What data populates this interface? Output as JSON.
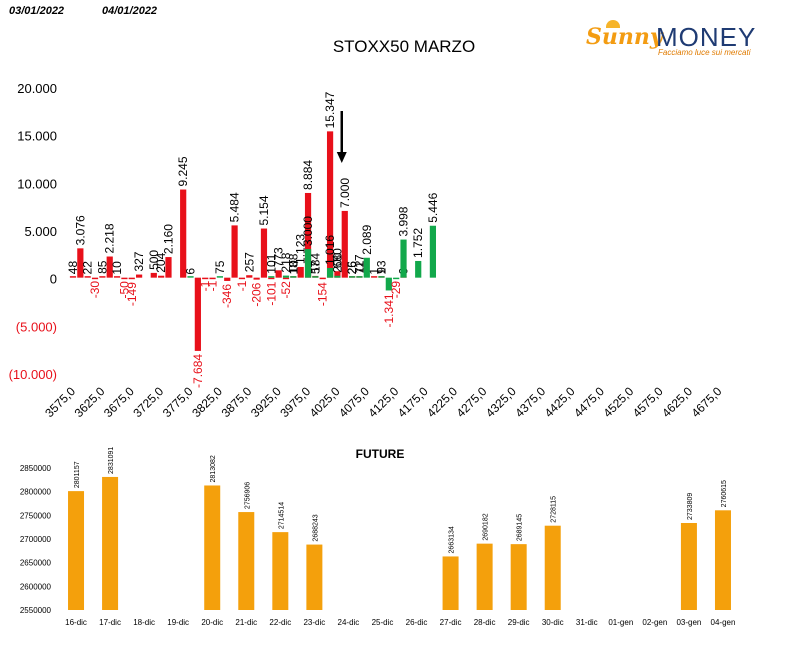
{
  "header": {
    "date_left": "03/01/2022",
    "date_right": "04/01/2022"
  },
  "logo": {
    "part1": "Sunny",
    "part2": "MONEY",
    "tagline": "Facciamo luce sui mercati"
  },
  "colors": {
    "red": "#e8101a",
    "green": "#12a84b",
    "orange": "#f4a00c",
    "negative_text": "#e8101a"
  },
  "chart_data": [
    {
      "type": "bar",
      "title": "STOXX50 MARZO",
      "ylim": [
        -10000,
        20000
      ],
      "yticks": [
        20000,
        15000,
        10000,
        5000,
        0,
        -5000,
        -10000
      ],
      "ytick_labels": [
        "20.000",
        "15.000",
        "10.000",
        "5.000",
        "0",
        "(5.000)",
        "(10.000)"
      ],
      "grid": false,
      "legend": "none",
      "categories": [
        "3575,0",
        "3625,0",
        "3675,0",
        "3725,0",
        "3775,0",
        "3825,0",
        "3875,0",
        "3925,0",
        "3975,0",
        "4025,0",
        "4075,0",
        "4125,0",
        "4175,0",
        "4225,0",
        "4275,0",
        "4325,0",
        "4375,0",
        "4425,0",
        "4475,0",
        "4525,0",
        "4575,0",
        "4625,0",
        "4675,0"
      ],
      "series": [
        {
          "values": [
            [
              0,
              48,
              "48"
            ],
            [
              0.5,
              3076,
              "3.076"
            ],
            [
              1,
              22,
              "22"
            ],
            [
              1.5,
              -30,
              "-30"
            ],
            [
              2,
              85,
              "85"
            ],
            [
              2.5,
              2218,
              "2.218"
            ],
            [
              3,
              10,
              "10"
            ],
            [
              3.5,
              -50,
              "-50"
            ],
            [
              4,
              -149,
              "-149"
            ],
            [
              4.5,
              327,
              "327"
            ],
            [
              5.5,
              500,
              "500"
            ],
            [
              6,
              204,
              "204"
            ],
            [
              6.5,
              2160,
              "2.160"
            ],
            [
              7.5,
              9245,
              "9.245"
            ],
            [
              8.5,
              -7684,
              "-7.684"
            ],
            [
              9,
              -1,
              "-1"
            ],
            [
              9.5,
              -1,
              "-1"
            ],
            [
              10.5,
              -346,
              "-346"
            ],
            [
              11,
              5484,
              "5.484"
            ],
            [
              11.5,
              -1,
              "-1"
            ],
            [
              12,
              257,
              "257"
            ],
            [
              12.5,
              -206,
              "-206"
            ],
            [
              13,
              5154,
              "5.154"
            ],
            [
              13.5,
              -101,
              "-101"
            ],
            [
              14,
              773,
              "773"
            ],
            [
              14.5,
              -52,
              "-52"
            ],
            [
              15,
              18,
              "18"
            ],
            [
              15.5,
              1123,
              "1.123"
            ],
            [
              16,
              8884,
              "8.884"
            ],
            [
              16.5,
              184,
              "184"
            ],
            [
              17,
              -154,
              "-154"
            ],
            [
              17.5,
              15347,
              "15.347"
            ],
            [
              18,
              680,
              "680"
            ],
            [
              18.5,
              7000,
              "7.000"
            ],
            [
              19,
              25,
              "25"
            ],
            [
              19.5,
              72,
              "72"
            ],
            [
              20.5,
              1,
              "1"
            ],
            [
              21,
              93,
              "93"
            ],
            [
              22.5,
              6,
              "6"
            ]
          ]
        },
        {
          "values": [
            [
              8,
              6,
              "6"
            ],
            [
              10,
              75,
              "75"
            ],
            [
              13.5,
              101,
              "101"
            ],
            [
              14.5,
              218,
              "218"
            ],
            [
              15,
              108,
              "108"
            ],
            [
              16,
              3000,
              "3.000"
            ],
            [
              16.5,
              57,
              "57"
            ],
            [
              17.5,
              1016,
              "1.016"
            ],
            [
              18,
              200,
              "200"
            ],
            [
              19,
              26,
              "26"
            ],
            [
              19.5,
              117,
              "117"
            ],
            [
              20,
              2089,
              "2.089"
            ],
            [
              21,
              1,
              "1"
            ],
            [
              21.5,
              -1341,
              "-1.341"
            ],
            [
              22,
              -29,
              "-29"
            ],
            [
              22.5,
              3998,
              "3.998"
            ],
            [
              23.5,
              1752,
              "1.752"
            ],
            [
              24.5,
              5446,
              "5.446"
            ]
          ]
        }
      ],
      "annotation": "arrow pointing down at 7.000"
    },
    {
      "type": "bar",
      "title": "FUTURE",
      "ylim": [
        2550000,
        2850000
      ],
      "yticks": [
        2850000,
        2800000,
        2750000,
        2700000,
        2650000,
        2600000,
        2550000
      ],
      "grid": false,
      "legend": "none",
      "categories": [
        "16-dic",
        "17-dic",
        "18-dic",
        "19-dic",
        "20-dic",
        "21-dic",
        "22-dic",
        "23-dic",
        "24-dic",
        "25-dic",
        "26-dic",
        "27-dic",
        "28-dic",
        "29-dic",
        "30-dic",
        "31-dic",
        "01-gen",
        "02-gen",
        "03-gen",
        "04-gen"
      ],
      "values": [
        2801157,
        2831091,
        null,
        null,
        2813082,
        2756906,
        2714514,
        2688243,
        null,
        null,
        null,
        2663134,
        2690182,
        2689145,
        2728115,
        null,
        null,
        null,
        2733809,
        2760615
      ]
    }
  ]
}
